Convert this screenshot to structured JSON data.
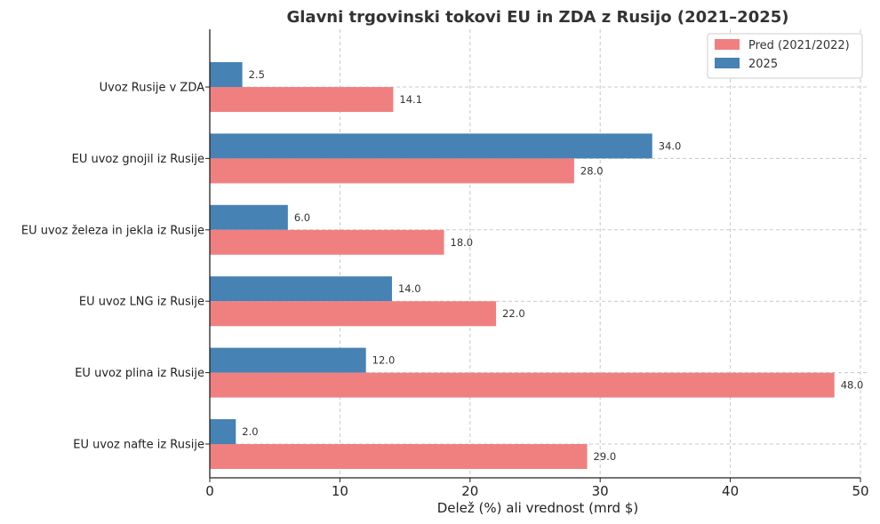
{
  "chart_data": {
    "type": "bar",
    "orientation": "horizontal",
    "title": "Glavni trgovinski tokovi EU in ZDA z Rusijo (2021–2025)",
    "xlabel": "Delež (%) ali vrednost (mrd $)",
    "ylabel": "",
    "xlim": [
      0,
      50
    ],
    "xticks": [
      0,
      10,
      20,
      30,
      40,
      50
    ],
    "grid": true,
    "legend_position": "top-right",
    "categories": [
      "Uvoz Rusije v ZDA",
      "EU uvoz gnojil iz Rusije",
      "EU uvoz železa in jekla iz Rusije",
      "EU uvoz LNG iz Rusije",
      "EU uvoz plina iz Rusije",
      "EU uvoz nafte iz Rusije"
    ],
    "series": [
      {
        "name": "Pred (2021/2022)",
        "color": "#f08080",
        "values": [
          14.1,
          28.0,
          18.0,
          22.0,
          48.0,
          29.0
        ]
      },
      {
        "name": "2025",
        "color": "#4682b4",
        "values": [
          2.5,
          34.0,
          6.0,
          14.0,
          12.0,
          2.0
        ]
      }
    ]
  }
}
